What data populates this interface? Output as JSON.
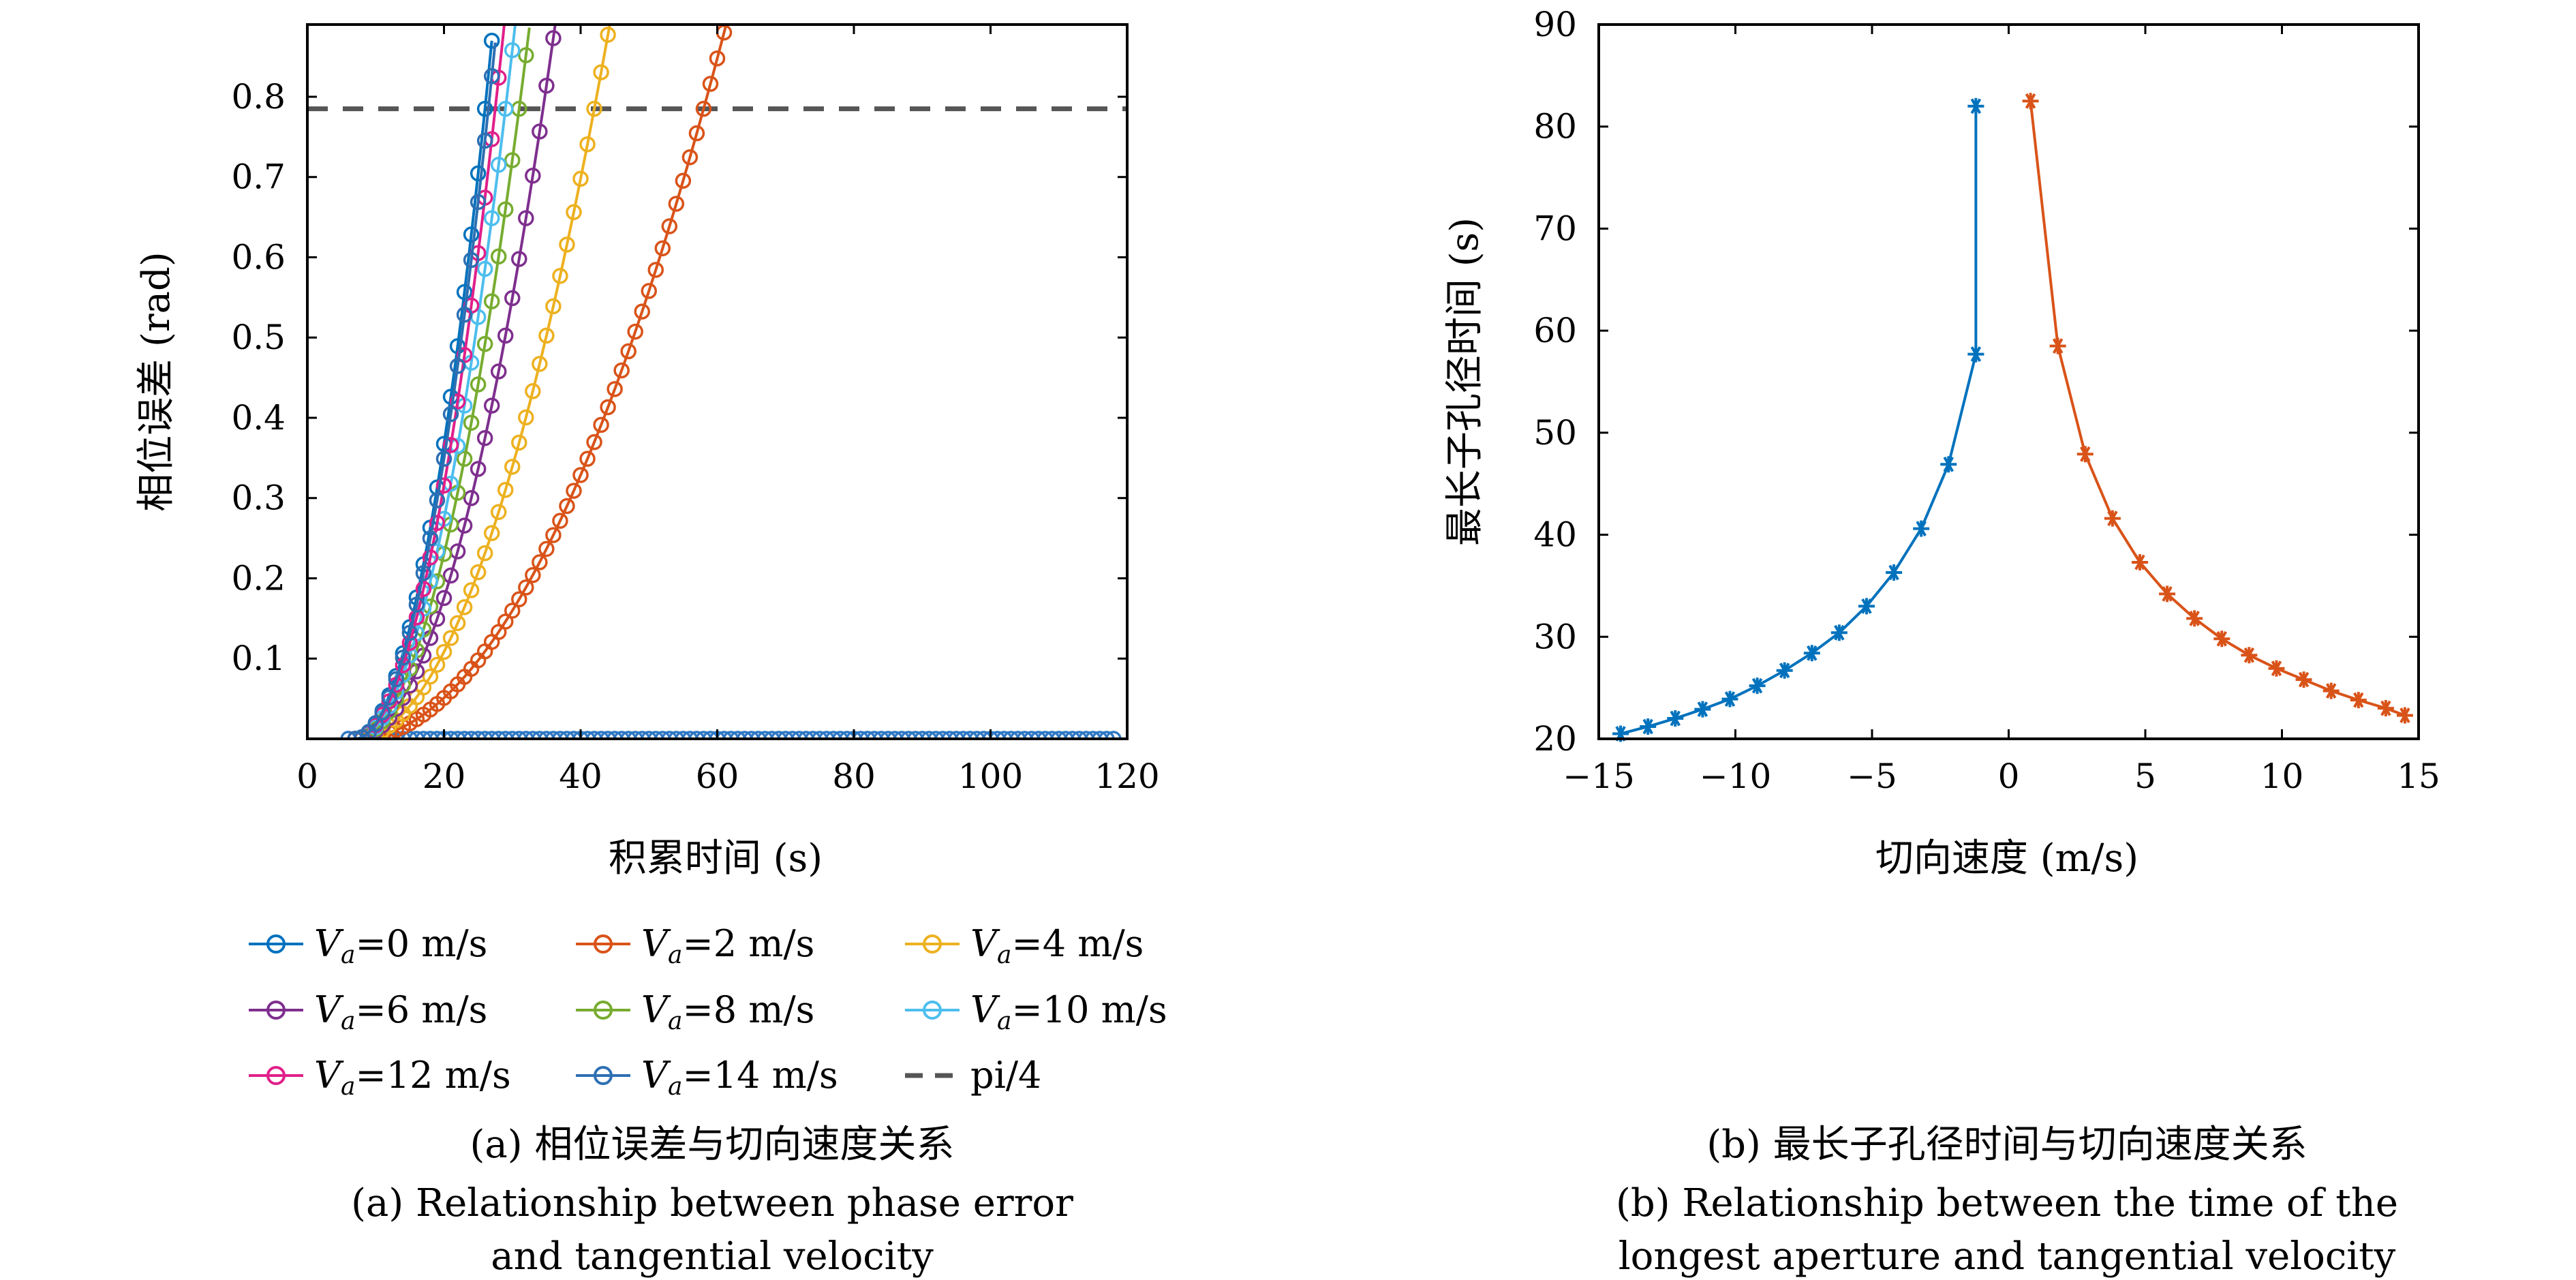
{
  "chart_data": [
    {
      "id": "a",
      "type": "line",
      "xlabel": "积累时间 (s)",
      "ylabel": "相位误差 (rad)",
      "xlim": [
        0,
        120
      ],
      "ylim": [
        0,
        0.89
      ],
      "xticks": [
        "0",
        "20",
        "40",
        "60",
        "80",
        "100",
        "120"
      ],
      "yticks": [
        "0.1",
        "0.2",
        "0.3",
        "0.4",
        "0.5",
        "0.6",
        "0.7",
        "0.8"
      ],
      "grid": false,
      "legend_position": "below",
      "series": [
        {
          "name": "Va=0 m/s",
          "va": 0,
          "color": "#0072bd",
          "t_cross": 26.0,
          "x_start": 7,
          "marker": "circle"
        },
        {
          "name": "Va=2 m/s",
          "va": 2,
          "color": "#d95319",
          "t_cross": 58.0,
          "x_start": 7,
          "marker": "circle"
        },
        {
          "name": "Va=4 m/s",
          "va": 4,
          "color": "#edb120",
          "t_cross": 42.0,
          "x_start": 7,
          "marker": "circle"
        },
        {
          "name": "Va=6 m/s",
          "va": 6,
          "color": "#7e2f8e",
          "t_cross": 34.5,
          "x_start": 7,
          "marker": "circle"
        },
        {
          "name": "Va=8 m/s",
          "va": 8,
          "color": "#77ac30",
          "t_cross": 31.0,
          "x_start": 7,
          "marker": "circle"
        },
        {
          "name": "Va=10 m/s",
          "va": 10,
          "color": "#4dbeee",
          "t_cross": 29.0,
          "x_start": 7,
          "marker": "circle"
        },
        {
          "name": "Va=12 m/s",
          "va": 12,
          "color": "#e0208a",
          "t_cross": 27.5,
          "x_start": 7,
          "marker": "circle"
        },
        {
          "name": "Va=14 m/s",
          "va": 14,
          "color": "#2e6fb3",
          "t_cross": 26.5,
          "x_start": 7,
          "marker": "circle"
        }
      ],
      "baseline": {
        "color": "#2e78c4",
        "y": 0.0,
        "x_range": [
          6,
          118
        ]
      },
      "reference": {
        "name": "pi/4",
        "y": 0.785,
        "color": "#555555",
        "style": "dashed"
      },
      "caption_cn": "(a) 相位误差与切向速度关系",
      "caption_en_1": "(a) Relationship between phase error",
      "caption_en_2": "and tangential velocity"
    },
    {
      "id": "b",
      "type": "line",
      "xlabel": "切向速度 (m/s)",
      "ylabel": "最长子孔径时间 (s)",
      "xlim": [
        -15,
        15
      ],
      "ylim": [
        20,
        90
      ],
      "xticks": [
        "−15",
        "−10",
        "−5",
        "0",
        "5",
        "10",
        "15"
      ],
      "yticks": [
        "20",
        "30",
        "40",
        "50",
        "60",
        "70",
        "80",
        "90"
      ],
      "grid": false,
      "series": [
        {
          "color": "#0072bd",
          "marker": "asterisk",
          "x": [
            -14.2,
            -13.2,
            -12.2,
            -11.2,
            -10.2,
            -9.2,
            -8.2,
            -7.2,
            -6.2,
            -5.2,
            -4.2,
            -3.2,
            -2.2,
            -1.2
          ],
          "y": [
            20.5,
            21.2,
            22.0,
            22.9,
            23.9,
            25.2,
            26.7,
            28.4,
            30.4,
            33.0,
            36.3,
            40.6,
            46.9,
            57.7
          ]
        },
        {
          "color": "#d95319",
          "marker": "asterisk",
          "x": [
            0.8,
            1.8,
            2.8,
            3.8,
            4.8,
            5.8,
            6.8,
            7.8,
            8.8,
            9.8,
            10.8,
            11.8,
            12.8,
            13.8,
            14.5
          ],
          "y": [
            82.5,
            58.5,
            47.9,
            41.6,
            37.3,
            34.2,
            31.8,
            29.8,
            28.2,
            26.9,
            25.8,
            24.7,
            23.8,
            23.0,
            22.3
          ]
        }
      ],
      "left_tail": {
        "x": -1.2,
        "y": 82.0
      },
      "caption_cn": "(b) 最长子孔径时间与切向速度关系",
      "caption_en_1": "(b) Relationship between the time of the",
      "caption_en_2": "longest aperture and tangential velocity"
    }
  ]
}
